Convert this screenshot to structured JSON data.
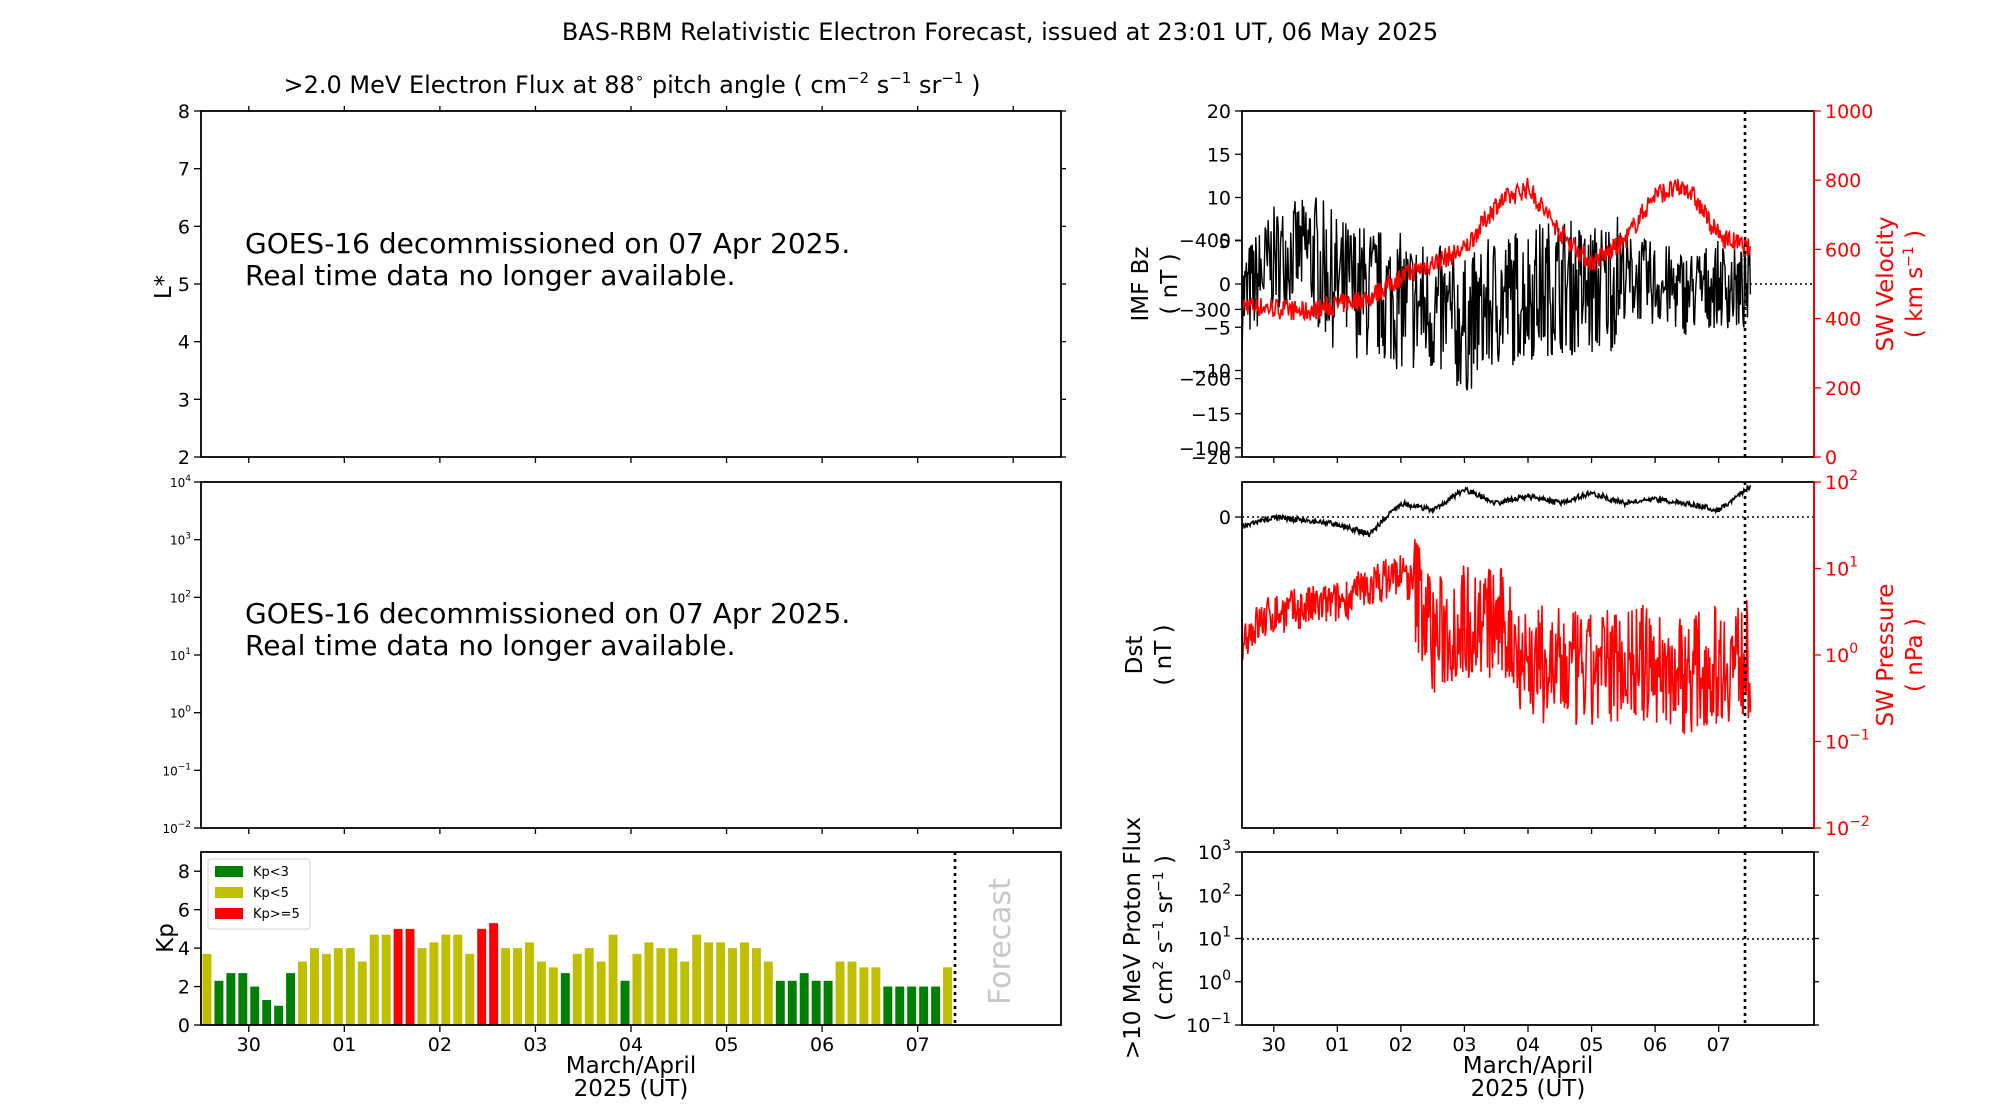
{
  "title": "BAS-RBM Relativistic Electron Forecast, issued at 23:01 UT, 06 May 2025",
  "flux_panel": {
    "title_prefix": ">2.0 MeV Electron Flux at 88",
    "title_suffix": " pitch angle ( cm",
    "title_s": " s",
    "title_sr": " sr",
    "title_end": " )",
    "sup_deg": "∘",
    "sup_m2": "−2",
    "sup_m1": "−1",
    "ylabel": "L*",
    "yticks": [
      "2",
      "3",
      "4",
      "5",
      "6",
      "7",
      "8"
    ],
    "message_line1": "GOES-16 decommissioned on 07 Apr 2025.",
    "message_line2": "Real time data no longer available."
  },
  "log_panel": {
    "ytick_base": [
      "10",
      "10",
      "10",
      "10",
      "10",
      "10",
      "10"
    ],
    "ytick_exp": [
      "−2",
      "−1",
      "0",
      "1",
      "2",
      "3",
      "4"
    ],
    "message_line1": "GOES-16 decommissioned on 07 Apr 2025.",
    "message_line2": "Real time data no longer available."
  },
  "kp_panel": {
    "ylabel": "Kp",
    "yticks": [
      "0",
      "2",
      "4",
      "6",
      "8"
    ],
    "forecast_label": "Forecast",
    "legend": [
      {
        "label": "Kp<3",
        "color": "#008000"
      },
      {
        "label": "Kp<5",
        "color": "#bfbf00"
      },
      {
        "label": "Kp>=5",
        "color": "#ff0000"
      }
    ],
    "xticks": [
      "30",
      "01",
      "02",
      "03",
      "04",
      "05",
      "06",
      "07"
    ],
    "xlabel_line1": "March/April",
    "xlabel_line2": "2025 (UT)"
  },
  "bz_panel": {
    "ylabel_line1": "IMF Bz",
    "ylabel_line2": "( nT )",
    "yticks": [
      "−20",
      "−15",
      "−10",
      "−5",
      "0",
      "5",
      "10",
      "15",
      "20"
    ],
    "ylabel_right_line1": "SW Velocity",
    "ylabel_right_line2": "( km s",
    "ylabel_right_sup": "−1",
    "ylabel_right_end": " )",
    "yticks_right": [
      "0",
      "200",
      "400",
      "600",
      "800",
      "1000"
    ]
  },
  "dst_panel": {
    "ylabel_line1": "Dst",
    "ylabel_line2": "( nT )",
    "yticks": [
      "−400",
      "−300",
      "−200",
      "−100",
      "0"
    ],
    "ylabel_right_line1": "SW Pressure",
    "ylabel_right_line2": "( nPa )",
    "ytick_right_base": [
      "10",
      "10",
      "10",
      "10",
      "10"
    ],
    "ytick_right_exp": [
      "−2",
      "−1",
      "0",
      "1",
      "2"
    ]
  },
  "proton_panel": {
    "ylabel_line1": ">10 MeV Proton Flux",
    "ylabel_line2a": "( cm",
    "ylabel_sup2": "2",
    "ylabel_line2b": " s",
    "ylabel_sup1": "−1",
    "ylabel_line2c": " sr",
    "ylabel_sup3": "−1",
    "ylabel_line2d": " )",
    "ytick_base": [
      "10",
      "10",
      "10",
      "10",
      "10"
    ],
    "ytick_exp": [
      "−1",
      "0",
      "1",
      "2",
      "3"
    ],
    "xticks": [
      "30",
      "01",
      "02",
      "03",
      "04",
      "05",
      "06",
      "07"
    ],
    "xlabel_line1": "March/April",
    "xlabel_line2": "2025 (UT)"
  },
  "chart_data": [
    {
      "type": "bar",
      "title": "Kp",
      "ylabel": "Kp",
      "ylim": [
        0,
        9
      ],
      "x_unit": "days since 29 Mar 2025 00 UT (3-hour bins)",
      "forecast_start": 8.0,
      "values": [
        3.7,
        2.3,
        2.7,
        2.7,
        2.0,
        1.3,
        1.0,
        2.7,
        3.3,
        4.0,
        3.7,
        4.0,
        4.0,
        3.3,
        4.7,
        4.7,
        5.0,
        5.0,
        4.0,
        4.3,
        4.7,
        4.7,
        3.7,
        5.0,
        5.3,
        4.0,
        4.0,
        4.3,
        3.3,
        3.0,
        2.7,
        3.7,
        4.0,
        3.3,
        4.7,
        2.3,
        3.7,
        4.3,
        4.0,
        4.0,
        3.3,
        4.7,
        4.3,
        4.3,
        4.0,
        4.3,
        4.0,
        3.3,
        2.3,
        2.3,
        2.7,
        2.3,
        2.3,
        3.3,
        3.3,
        3.0,
        3.0,
        2.0,
        2.0,
        2.0,
        2.0,
        2.0,
        3.0
      ],
      "legend": [
        "Kp<3",
        "Kp<5",
        "Kp>=5"
      ],
      "legend_placement": "top-left"
    },
    {
      "type": "line",
      "title": "IMF Bz / SW Velocity",
      "ylabel": "IMF Bz ( nT )",
      "ylim": [
        -20,
        20
      ],
      "ylabel_right": "SW Velocity ( km s-1 )",
      "ylim_right": [
        0,
        1000
      ],
      "x": [
        0,
        0.5,
        1,
        1.5,
        2,
        2.5,
        3,
        3.5,
        4,
        4.5,
        5,
        5.5,
        6,
        6.5,
        7,
        7.5,
        8
      ],
      "series": [
        {
          "name": "IMF Bz",
          "color": "#000000",
          "values": [
            -2,
            3,
            4,
            0,
            -1,
            -2,
            -3,
            -5,
            -2,
            -1,
            0,
            -1,
            1,
            0,
            -1,
            0,
            -1
          ]
        },
        {
          "name": "SW Velocity",
          "color": "#ff0000",
          "values": [
            440,
            430,
            420,
            440,
            460,
            520,
            560,
            600,
            730,
            780,
            650,
            560,
            620,
            760,
            780,
            640,
            600
          ]
        }
      ]
    },
    {
      "type": "line",
      "title": "Dst / SW Pressure",
      "ylabel": "Dst ( nT )",
      "ylim": [
        -450,
        50
      ],
      "ylabel_right": "SW Pressure ( nPa )",
      "ylim_right_log": [
        0.01,
        100
      ],
      "x": [
        0,
        0.5,
        1,
        1.5,
        2,
        2.5,
        3,
        3.5,
        4,
        4.5,
        5,
        5.5,
        6,
        6.5,
        7,
        7.5,
        8
      ],
      "series": [
        {
          "name": "Dst",
          "color": "#000000",
          "values": [
            15,
            0,
            5,
            10,
            25,
            -20,
            -10,
            -40,
            -20,
            -30,
            -20,
            -35,
            -20,
            -25,
            -20,
            -10,
            -45
          ]
        },
        {
          "name": "SW Pressure",
          "color": "#ff0000",
          "values": [
            1.5,
            3,
            3.5,
            4,
            6,
            9,
            1.5,
            2.5,
            2.3,
            0.8,
            0.7,
            0.6,
            0.9,
            0.7,
            0.6,
            0.8,
            0.9
          ]
        }
      ]
    },
    {
      "type": "line",
      "title": ">10 MeV Proton Flux",
      "ylim_log": [
        0.1,
        1000
      ],
      "threshold": 10
    }
  ]
}
